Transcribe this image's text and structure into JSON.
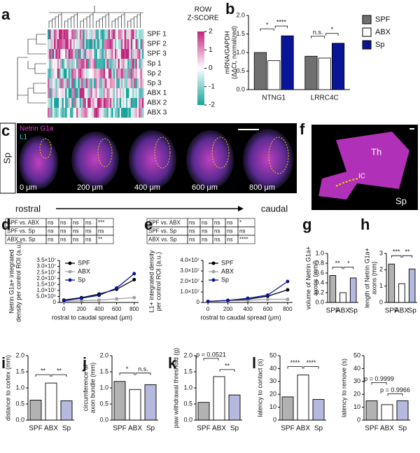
{
  "panel_labels": [
    "a",
    "b",
    "c",
    "d",
    "e",
    "f",
    "g",
    "h",
    "i",
    "j",
    "k",
    "l"
  ],
  "images": {
    "c": {
      "side_label": "Sp",
      "stains": [
        "Netrin G1a",
        "L1"
      ],
      "depths": [
        "0 μm",
        "200 μm",
        "400 μm",
        "600 μm",
        "800 μm"
      ],
      "axis": [
        "rostral",
        "caudal"
      ]
    },
    "f": {
      "labels": [
        "Th",
        "IC",
        "Sp"
      ]
    }
  },
  "chart_data": [
    {
      "type": "heatmap",
      "rows": [
        "SPF 1",
        "SPF 2",
        "SPF 3",
        "Sp 1",
        "Sp 2",
        "Sp 3",
        "ABX 1",
        "ABX 2",
        "ABX 3"
      ],
      "colorbar_title": [
        "ROW",
        "Z-SCORE"
      ],
      "colorbar_ticks": [
        2,
        1,
        0,
        -1,
        -2
      ],
      "colors": [
        "#c0257d",
        "#ffffff",
        "#16a39c"
      ]
    },
    {
      "type": "grouped_bar",
      "categories": [
        "NTNG1",
        "LRRC4C"
      ],
      "series": [
        {
          "name": "SPF",
          "color": "#707070",
          "values": [
            1.0,
            0.9
          ]
        },
        {
          "name": "ABX",
          "color": "#ffffff",
          "values": [
            0.78,
            0.85
          ]
        },
        {
          "name": "Sp",
          "color": "#0a1496",
          "values": [
            1.45,
            1.25
          ]
        }
      ],
      "ylim": [
        0,
        2
      ],
      "yticks": [
        {
          "value": 0,
          "label": "0.0"
        },
        {
          "value": 0.5,
          "label": "0.5"
        },
        {
          "value": 1,
          "label": "1.0"
        },
        {
          "value": 1.5,
          "label": "1.5"
        },
        {
          "value": 2,
          "label": "2.0"
        }
      ],
      "ylabel": [
        "mRNA/GAPDH",
        "(ΔΔCt, normalized)"
      ],
      "annotations": [
        "*",
        "****",
        "n.s.",
        "*"
      ]
    },
    {
      "type": "line",
      "table": [
        [
          "SPF vs. ABX",
          "ns",
          "ns",
          "ns",
          "ns",
          "***"
        ],
        [
          "SPF vs. Sp",
          "ns",
          "ns",
          "ns",
          "ns",
          "ns"
        ],
        [
          "ABX vs. Sp",
          "ns",
          "ns",
          "ns",
          "ns",
          "**"
        ]
      ],
      "x": [
        0,
        200,
        400,
        600,
        800
      ],
      "xlim": [
        -50,
        850
      ],
      "xticks": [
        0,
        200,
        400,
        600,
        800
      ],
      "series": [
        {
          "name": "SPF",
          "color": "#000000",
          "values": [
            2000000,
            4000000,
            7000000,
            11000000,
            19000000
          ]
        },
        {
          "name": "ABX",
          "color": "#a0a0a0",
          "values": [
            1000000,
            1500000,
            2000000,
            3000000,
            4000000
          ]
        },
        {
          "name": "Sp",
          "color": "#0a1496",
          "values": [
            1500000,
            3500000,
            6000000,
            12000000,
            24000000
          ]
        }
      ],
      "ylim": [
        0,
        35000000
      ],
      "yticks": [
        {
          "value": 0,
          "label": "0"
        },
        {
          "value": 5000000,
          "label": "5.0×10⁶"
        },
        {
          "value": 10000000,
          "label": "1.0×10⁷"
        },
        {
          "value": 15000000,
          "label": "1.5×10⁷"
        },
        {
          "value": 20000000,
          "label": "2.0×10⁷"
        },
        {
          "value": 25000000,
          "label": "2.5×10⁷"
        },
        {
          "value": 30000000,
          "label": "3.0×10⁷"
        },
        {
          "value": 35000000,
          "label": "3.5×10⁷"
        }
      ],
      "xlabel": "rostral to caudal spread (μm)",
      "ylabel": [
        "Netrin G1a+ integrated",
        "density per control ROI (a.u.)"
      ]
    },
    {
      "type": "line",
      "table": [
        [
          "SPF vs. ABX",
          "ns",
          "ns",
          "ns",
          "ns",
          "*"
        ],
        [
          "SPF vs. Sp",
          "ns",
          "ns",
          "ns",
          "ns",
          "ns"
        ],
        [
          "ABX vs. Sp",
          "ns",
          "ns",
          "ns",
          "ns",
          "****"
        ]
      ],
      "x": [
        0,
        200,
        400,
        600,
        800
      ],
      "xlim": [
        -50,
        850
      ],
      "xticks": [
        0,
        200,
        400,
        600,
        800
      ],
      "series": [
        {
          "name": "SPF",
          "color": "#000000",
          "values": [
            1000000,
            2000000,
            3000000,
            6000000,
            12000000
          ]
        },
        {
          "name": "ABX",
          "color": "#a0a0a0",
          "values": [
            1000000,
            1500000,
            2000000,
            3000000,
            3000000
          ]
        },
        {
          "name": "Sp",
          "color": "#0a1496",
          "values": [
            1000000,
            2000000,
            4000000,
            7000000,
            20000000
          ]
        }
      ],
      "ylim": [
        0,
        40000000
      ],
      "yticks": [
        {
          "value": 0,
          "label": "0"
        },
        {
          "value": 10000000,
          "label": "1.0×10⁷"
        },
        {
          "value": 20000000,
          "label": "2.0×10⁷"
        },
        {
          "value": 30000000,
          "label": "3.0×10⁷"
        },
        {
          "value": 40000000,
          "label": "4.0×10⁷"
        }
      ],
      "xlabel": "rostral to caudal spread (μm)",
      "ylabel": [
        "L1+ integrated density",
        "per control ROI (a.u.)"
      ]
    },
    {
      "type": "bar",
      "categories": [
        "SPF",
        "ABX",
        "Sp"
      ],
      "colors": [
        "#000000",
        "#ffffff",
        "#0a1496"
      ],
      "values": [
        0.55,
        0.2,
        0.5
      ],
      "ylim": [
        0,
        1
      ],
      "yticks": [
        {
          "value": 0,
          "label": "0.0"
        },
        {
          "value": 0.2,
          "label": "0.2"
        },
        {
          "value": 0.4,
          "label": "0.4"
        },
        {
          "value": 0.6,
          "label": "0.6"
        },
        {
          "value": 0.8,
          "label": "0.8"
        },
        {
          "value": 1,
          "label": "1.0"
        }
      ],
      "ylabel": [
        "volume of Netrin G1a+",
        "axons (mm³)"
      ],
      "annotations": [
        "**",
        "*"
      ]
    },
    {
      "type": "bar",
      "categories": [
        "SPF",
        "ABX",
        "Sp"
      ],
      "colors": [
        "#000000",
        "#ffffff",
        "#0a1496"
      ],
      "values": [
        2.35,
        1.15,
        2.05
      ],
      "ylim": [
        0,
        3
      ],
      "yticks": [
        0,
        1,
        2,
        3
      ],
      "ylabel": [
        "length of Netrin G1a+",
        "axons (mm)"
      ],
      "annotations": [
        "***",
        "**"
      ]
    },
    {
      "type": "bar",
      "categories": [
        "SPF",
        "ABX",
        "Sp"
      ],
      "colors": [
        "#000000",
        "#ffffff",
        "#0a1496"
      ],
      "values": [
        0.62,
        1.15,
        0.6
      ],
      "ylim": [
        0,
        2
      ],
      "yticks": [
        {
          "value": 0,
          "label": "0.0"
        },
        {
          "value": 0.5,
          "label": "0.5"
        },
        {
          "value": 1,
          "label": "1.0"
        },
        {
          "value": 1.5,
          "label": "1.5"
        },
        {
          "value": 2,
          "label": "2.0"
        }
      ],
      "ylabel": [
        "distance to cortex (mm)"
      ],
      "annotations": [
        "**",
        "**"
      ]
    },
    {
      "type": "bar",
      "categories": [
        "SPF",
        "ABX",
        "Sp"
      ],
      "colors": [
        "#000000",
        "#ffffff",
        "#0a1496"
      ],
      "values": [
        1.2,
        0.95,
        1.1
      ],
      "ylim": [
        0,
        2
      ],
      "yticks": [
        {
          "value": 0,
          "label": "0.0"
        },
        {
          "value": 0.5,
          "label": "0.5"
        },
        {
          "value": 1,
          "label": "1.0"
        },
        {
          "value": 1.5,
          "label": "1.5"
        },
        {
          "value": 2,
          "label": "2.0"
        }
      ],
      "ylabel": [
        "circumference of",
        "axon bundle (mm)"
      ],
      "annotations": [
        "*",
        "n.s."
      ]
    },
    {
      "type": "bar",
      "categories": [
        "SPF",
        "ABX",
        "Sp"
      ],
      "colors": [
        "#000000",
        "#ffffff",
        "#0a1496"
      ],
      "values": [
        0.55,
        1.35,
        0.78
      ],
      "ylim": [
        0,
        2
      ],
      "yticks": [
        {
          "value": 0,
          "label": "0.0"
        },
        {
          "value": 0.5,
          "label": "0.5"
        },
        {
          "value": 1,
          "label": "1.0"
        },
        {
          "value": 1.5,
          "label": "1.5"
        },
        {
          "value": 2,
          "label": "2.0"
        }
      ],
      "ylabel": [
        "paw withdrawal threshold (g)"
      ],
      "annotations": [
        "p = 0.0521",
        "**"
      ]
    },
    {
      "type": "bar",
      "categories": [
        "SPF",
        "ABX",
        "Sp"
      ],
      "colors": [
        "#000000",
        "#ffffff",
        "#0a1496"
      ],
      "values": [
        18,
        35,
        16
      ],
      "ylim": [
        0,
        50
      ],
      "yticks": [
        0,
        10,
        20,
        30,
        40,
        50
      ],
      "ylabel": [
        "latency to contact (s)"
      ],
      "annotations": [
        "****",
        "****"
      ]
    },
    {
      "type": "bar",
      "categories": [
        "SPF",
        "ABX",
        "Sp"
      ],
      "colors": [
        "#000000",
        "#ffffff",
        "#0a1496"
      ],
      "values": [
        15,
        12,
        15
      ],
      "ylim": [
        0,
        50
      ],
      "yticks": [
        0,
        10,
        20,
        30,
        40,
        50
      ],
      "ylabel": [
        "latency to remove (s)"
      ],
      "annotations": [
        "p = 0.9999",
        "p = 0.9966"
      ]
    }
  ]
}
